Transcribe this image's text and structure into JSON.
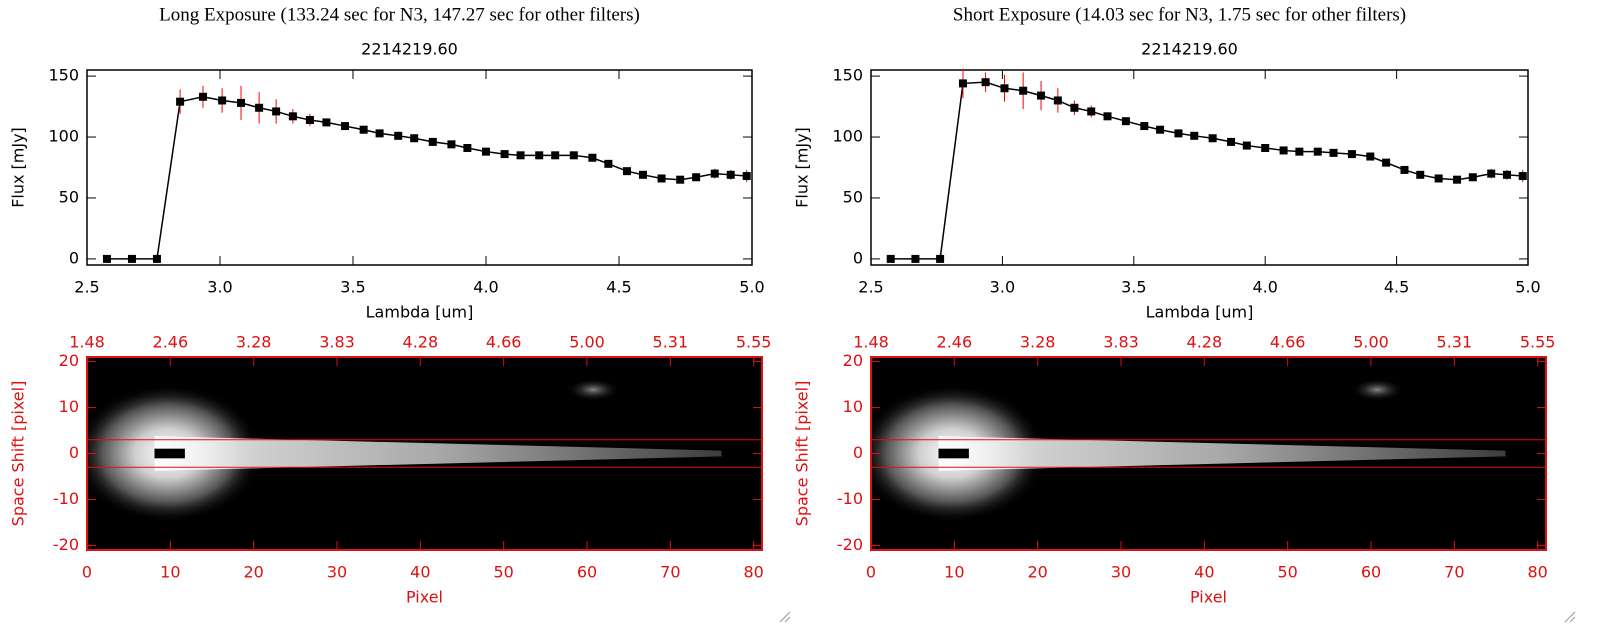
{
  "chart_data": [
    {
      "type": "line",
      "suptitle": "Long Exposure (133.24 sec for N3, 147.27 sec for other filters)",
      "title": "2214219.60",
      "xlabel": "Lambda [um]",
      "ylabel": "Flux [mJy]",
      "x": [
        2.575,
        2.669,
        2.763,
        2.85,
        2.936,
        3.008,
        3.079,
        3.147,
        3.211,
        3.274,
        3.338,
        3.4,
        3.47,
        3.54,
        3.6,
        3.67,
        3.73,
        3.8,
        3.87,
        3.93,
        4.0,
        4.07,
        4.13,
        4.2,
        4.26,
        4.33,
        4.4,
        4.46,
        4.53,
        4.59,
        4.66,
        4.73,
        4.79,
        4.86,
        4.92,
        4.98
      ],
      "values": [
        0,
        0,
        0,
        129,
        133,
        130,
        128,
        124,
        121,
        117,
        114,
        112,
        109,
        106,
        103,
        101,
        99,
        96,
        94,
        91,
        88,
        86,
        85,
        85,
        85,
        85,
        83,
        78,
        72,
        69,
        66,
        65,
        67,
        70,
        69,
        68
      ],
      "errors": [
        0,
        0,
        0,
        10,
        9,
        10,
        14,
        13,
        10,
        6,
        5,
        3,
        3,
        2,
        2,
        2,
        2,
        2,
        2,
        2,
        2,
        2,
        2,
        2,
        2,
        2,
        2,
        2,
        2,
        2,
        2,
        2,
        3,
        4,
        4,
        5
      ],
      "color": "#000000",
      "error_color": "#ff0000",
      "xlim": [
        2.5,
        5.0
      ],
      "ylim": [
        -5,
        155
      ],
      "xticks": [
        2.5,
        {
          "value": 3.0,
          "label": "3.0"
        },
        3.5,
        {
          "value": 4.0,
          "label": "4.0"
        },
        4.5,
        {
          "value": 5.0,
          "label": "5.0"
        }
      ],
      "yticks": [
        0,
        50,
        100,
        150
      ]
    },
    {
      "type": "image",
      "xlabel": "Pixel",
      "ylabel": "Space Shift [pixel]",
      "xlim": [
        0,
        81
      ],
      "ylim": [
        -21,
        21
      ],
      "xticks": [
        0,
        10,
        20,
        30,
        40,
        50,
        60,
        70,
        80
      ],
      "yticks": [
        -20,
        -10,
        0,
        10,
        20
      ],
      "x2ticks": [
        {
          "value": 0,
          "label": "1.48"
        },
        {
          "value": 10,
          "label": "2.46"
        },
        {
          "value": 20,
          "label": "3.28"
        },
        {
          "value": 30,
          "label": "3.83"
        },
        {
          "value": 40,
          "label": "4.28"
        },
        {
          "value": 50,
          "label": "4.66"
        },
        {
          "value": 60,
          "label": "5.00"
        },
        {
          "value": 70,
          "label": "5.31"
        },
        {
          "value": 80,
          "label": "5.55"
        }
      ],
      "aperture": [
        -3,
        3
      ],
      "color": "#dd1111"
    },
    {
      "type": "line",
      "suptitle": "Short Exposure (14.03 sec for N3, 1.75 sec for other filters)",
      "title": "2214219.60",
      "xlabel": "Lambda [um]",
      "ylabel": "Flux [mJy]",
      "x": [
        2.575,
        2.669,
        2.763,
        2.85,
        2.936,
        3.008,
        3.079,
        3.147,
        3.211,
        3.274,
        3.338,
        3.4,
        3.47,
        3.54,
        3.6,
        3.67,
        3.73,
        3.8,
        3.87,
        3.93,
        4.0,
        4.07,
        4.13,
        4.2,
        4.26,
        4.33,
        4.4,
        4.46,
        4.53,
        4.59,
        4.66,
        4.73,
        4.79,
        4.86,
        4.92,
        4.98
      ],
      "values": [
        0,
        0,
        0,
        144,
        145,
        140,
        138,
        134,
        130,
        124,
        121,
        117,
        113,
        109,
        106,
        103,
        101,
        99,
        96,
        93,
        91,
        89,
        88,
        88,
        87,
        86,
        84,
        79,
        73,
        69,
        66,
        65,
        67,
        70,
        69,
        68
      ],
      "errors": [
        0,
        0,
        0,
        12,
        8,
        11,
        15,
        12,
        10,
        6,
        5,
        3,
        3,
        2,
        2,
        2,
        2,
        2,
        2,
        2,
        2,
        2,
        2,
        2,
        2,
        2,
        2,
        2,
        2,
        2,
        2,
        2,
        3,
        4,
        4,
        5
      ],
      "color": "#000000",
      "error_color": "#ff0000",
      "xlim": [
        2.5,
        5.0
      ],
      "ylim": [
        -5,
        155
      ],
      "xticks": [
        2.5,
        {
          "value": 3.0,
          "label": "3.0"
        },
        3.5,
        {
          "value": 4.0,
          "label": "4.0"
        },
        4.5,
        {
          "value": 5.0,
          "label": "5.0"
        }
      ],
      "yticks": [
        0,
        50,
        100,
        150
      ]
    },
    {
      "type": "image",
      "xlabel": "Pixel",
      "ylabel": "Space Shift [pixel]",
      "xlim": [
        0,
        81
      ],
      "ylim": [
        -21,
        21
      ],
      "xticks": [
        0,
        10,
        20,
        30,
        40,
        50,
        60,
        70,
        80
      ],
      "yticks": [
        -20,
        -10,
        0,
        10,
        20
      ],
      "x2ticks": [
        {
          "value": 0,
          "label": "1.48"
        },
        {
          "value": 10,
          "label": "2.46"
        },
        {
          "value": 20,
          "label": "3.28"
        },
        {
          "value": 30,
          "label": "3.83"
        },
        {
          "value": 40,
          "label": "4.28"
        },
        {
          "value": 50,
          "label": "4.66"
        },
        {
          "value": 60,
          "label": "5.00"
        },
        {
          "value": 70,
          "label": "5.31"
        },
        {
          "value": 80,
          "label": "5.55"
        }
      ],
      "aperture": [
        -3,
        3
      ],
      "color": "#dd1111"
    }
  ]
}
